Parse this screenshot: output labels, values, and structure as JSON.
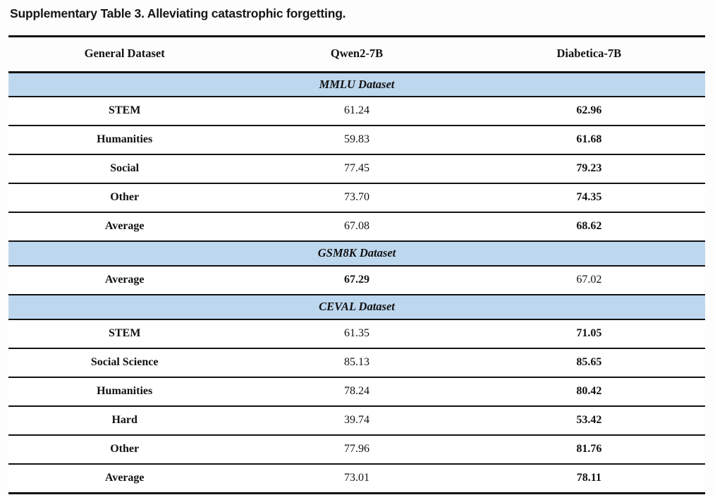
{
  "page": {
    "title": "Supplementary Table 3. Alleviating catastrophic forgetting."
  },
  "colors": {
    "section_band": "#bdd7ee",
    "rule_line": "#121212",
    "text": "#111111"
  },
  "table": {
    "columns": [
      "General Dataset",
      "Qwen2-7B",
      "Diabetica-7B"
    ],
    "sections": [
      {
        "header": "MMLU Dataset",
        "rows": [
          {
            "label": "STEM",
            "qwen": "61.24",
            "diabetica": "62.96",
            "best": "diabetica"
          },
          {
            "label": "Humanities",
            "qwen": "59.83",
            "diabetica": "61.68",
            "best": "diabetica"
          },
          {
            "label": "Social",
            "qwen": "77.45",
            "diabetica": "79.23",
            "best": "diabetica"
          },
          {
            "label": "Other",
            "qwen": "73.70",
            "diabetica": "74.35",
            "best": "diabetica"
          },
          {
            "label": "Average",
            "qwen": "67.08",
            "diabetica": "68.62",
            "best": "diabetica"
          }
        ]
      },
      {
        "header": "GSM8K Dataset",
        "rows": [
          {
            "label": "Average",
            "qwen": "67.29",
            "diabetica": "67.02",
            "best": "qwen"
          }
        ]
      },
      {
        "header": "CEVAL Dataset",
        "rows": [
          {
            "label": "STEM",
            "qwen": "61.35",
            "diabetica": "71.05",
            "best": "diabetica"
          },
          {
            "label": "Social Science",
            "qwen": "85.13",
            "diabetica": "85.65",
            "best": "diabetica"
          },
          {
            "label": "Humanities",
            "qwen": "78.24",
            "diabetica": "80.42",
            "best": "diabetica"
          },
          {
            "label": "Hard",
            "qwen": "39.74",
            "diabetica": "53.42",
            "best": "diabetica"
          },
          {
            "label": "Other",
            "qwen": "77.96",
            "diabetica": "81.76",
            "best": "diabetica"
          },
          {
            "label": "Average",
            "qwen": "73.01",
            "diabetica": "78.11",
            "best": "diabetica"
          }
        ]
      }
    ]
  }
}
